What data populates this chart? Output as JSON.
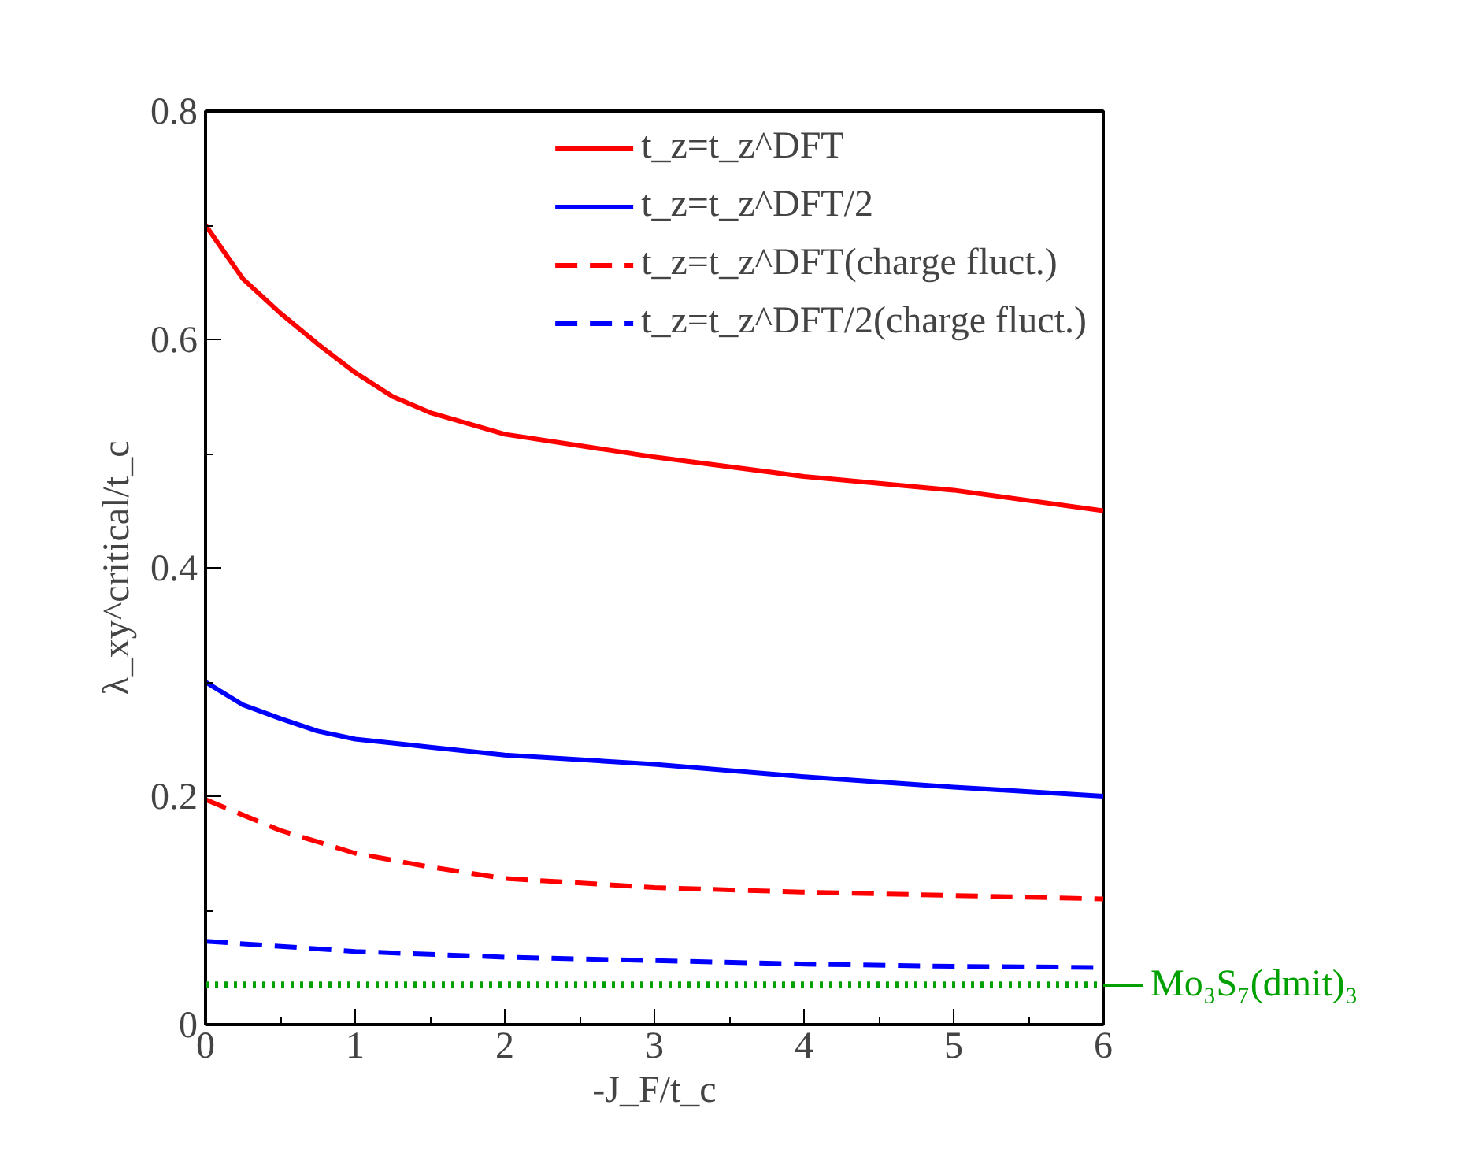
{
  "chart_data": {
    "type": "line",
    "xlabel": "-J_F/t_c",
    "ylabel": "λ_xy^critical/t_c",
    "xlim": [
      0,
      6
    ],
    "ylim": [
      0,
      0.8
    ],
    "xticks": [
      0,
      1,
      2,
      3,
      4,
      5,
      6
    ],
    "yticks": [
      0,
      0.2,
      0.4,
      0.6,
      0.8
    ],
    "grid": false,
    "legend": "top right",
    "marker": "none",
    "series": [
      {
        "name": "t_z=t_z^DFT",
        "color": "#ff0000",
        "line_style": "solid",
        "x": [
          0,
          0.25,
          0.5,
          0.75,
          1,
          1.25,
          1.5,
          2,
          3,
          4,
          5,
          6
        ],
        "values": [
          0.7,
          0.653,
          0.623,
          0.596,
          0.571,
          0.55,
          0.536,
          0.517,
          0.497,
          0.48,
          0.468,
          0.45
        ]
      },
      {
        "name": "t_z=t_z^DFT/2",
        "color": "#0000ff",
        "line_style": "solid",
        "x": [
          0,
          0.25,
          0.5,
          0.75,
          1,
          1.5,
          2,
          3,
          4,
          5,
          6
        ],
        "values": [
          0.3,
          0.28,
          0.268,
          0.257,
          0.25,
          0.243,
          0.236,
          0.228,
          0.217,
          0.208,
          0.2
        ]
      },
      {
        "name": "t_z=t_z^DFT(charge fluct.)",
        "color": "#ff0000",
        "line_style": "dashed",
        "x": [
          0,
          0.5,
          1,
          1.5,
          2,
          3,
          4,
          5,
          6
        ],
        "values": [
          0.197,
          0.17,
          0.15,
          0.138,
          0.128,
          0.12,
          0.116,
          0.113,
          0.11
        ]
      },
      {
        "name": "t_z=t_z^DFT/2(charge fluct.)",
        "color": "#0000ff",
        "line_style": "dashed",
        "x": [
          0,
          1,
          2,
          3,
          4,
          5,
          6
        ],
        "values": [
          0.073,
          0.064,
          0.059,
          0.056,
          0.053,
          0.051,
          0.05
        ]
      }
    ],
    "ref_lines": [
      {
        "axis": "y",
        "value": 0.035,
        "label": "Mo₃S₇(dmit)₃",
        "color": "#00a000",
        "line_style": "dotted"
      }
    ]
  }
}
